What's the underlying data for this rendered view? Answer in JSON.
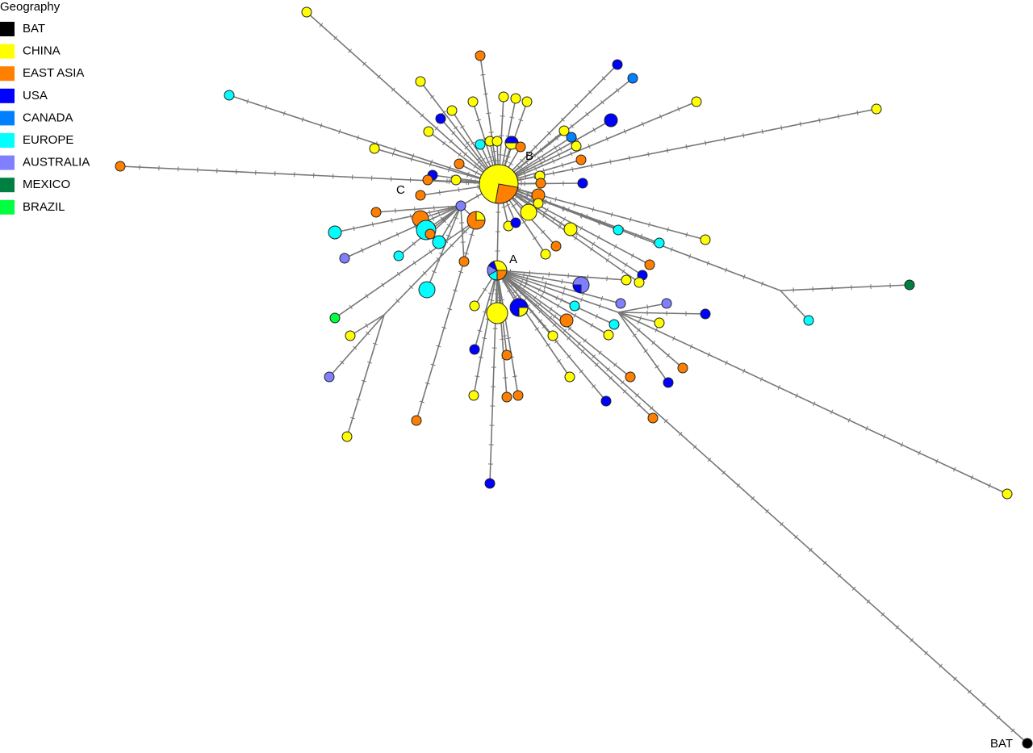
{
  "legend": {
    "title": "Geography",
    "items": [
      {
        "label": "BAT",
        "color": "#000000"
      },
      {
        "label": "CHINA",
        "color": "#ffff00"
      },
      {
        "label": "EAST ASIA",
        "color": "#ff8000"
      },
      {
        "label": "USA",
        "color": "#0000ff"
      },
      {
        "label": "CANADA",
        "color": "#0080ff"
      },
      {
        "label": "EUROPE",
        "color": "#00ffff"
      },
      {
        "label": "AUSTRALIA",
        "color": "#8080ff"
      },
      {
        "label": "MEXICO",
        "color": "#008040"
      },
      {
        "label": "BRAZIL",
        "color": "#00ff40"
      }
    ]
  },
  "labels": {
    "a": "A",
    "b": "B",
    "c": "C",
    "bat": "BAT"
  }
}
